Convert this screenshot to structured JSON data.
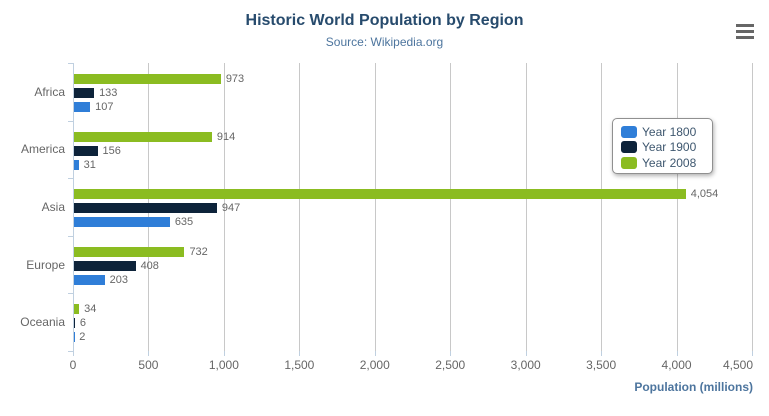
{
  "header": {
    "title": "Historic World Population by Region",
    "subtitle": "Source: Wikipedia.org",
    "menu_icon": "hamburger-menu-icon"
  },
  "colors": {
    "title": "#274b6d",
    "subtitle": "#4d759e",
    "axis_title": "#4d759e",
    "labels": "#666666",
    "gridline": "#c8c8c8",
    "axis_line": "#c0d0e0",
    "legend_border": "#909090",
    "legend_text": "#3e576f",
    "menu_icon": "#666666"
  },
  "chart_data": {
    "type": "bar",
    "title": "Historic World Population by Region",
    "subtitle": "Source: Wikipedia.org",
    "categories": [
      "Africa",
      "America",
      "Asia",
      "Europe",
      "Oceania"
    ],
    "series": [
      {
        "name": "Year 1800",
        "color": "#2f7ed8",
        "values": [
          107,
          31,
          635,
          203,
          2
        ]
      },
      {
        "name": "Year 1900",
        "color": "#0d233a",
        "values": [
          133,
          156,
          947,
          408,
          6
        ]
      },
      {
        "name": "Year 2008",
        "color": "#8bbc21",
        "values": [
          973,
          914,
          4054,
          732,
          34
        ]
      }
    ],
    "bar_order_top_to_bottom": [
      "Year 2008",
      "Year 1900",
      "Year 1800"
    ],
    "data_labels_shown": true,
    "xlabel": "Population (millions)",
    "ylabel": "",
    "xlim": [
      0,
      4500
    ],
    "x_tick_values": [
      0,
      500,
      1000,
      1500,
      2000,
      2500,
      3000,
      3500,
      4000,
      4500
    ],
    "x_tick_labels": [
      "0",
      "500",
      "1,000",
      "1,500",
      "2,000",
      "2,500",
      "3,000",
      "3,500",
      "4,000",
      "4,500"
    ],
    "grid": true,
    "legend_position": "right-middle-box"
  }
}
